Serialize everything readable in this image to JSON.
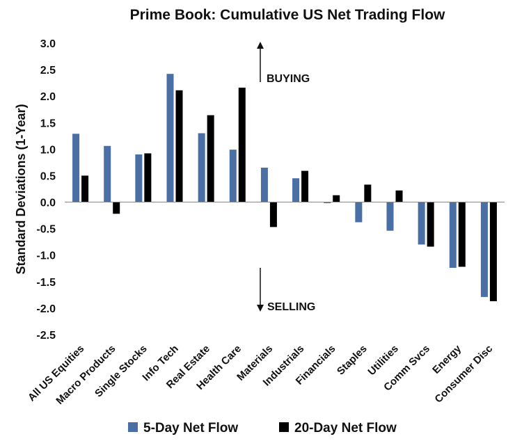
{
  "chart_data": {
    "type": "bar",
    "title": "Prime Book: Cumulative US Net Trading Flow",
    "xlabel": "",
    "ylabel": "Standard Deviations (1-Year)",
    "ylim": [
      -2.5,
      3.0
    ],
    "yticks": [
      "3.0",
      "2.5",
      "2.0",
      "1.5",
      "1.0",
      "0.5",
      "0.0",
      "-0.5",
      "-1.0",
      "-1.5",
      "-2.0",
      "-2.5"
    ],
    "grid": false,
    "legend_position": "bottom",
    "categories": [
      "All US Equities",
      "Macro Products",
      "Single Stocks",
      "Info Tech",
      "Real Estate",
      "Health Care",
      "Materials",
      "Industrials",
      "Financials",
      "Staples",
      "Utilities",
      "Comm Svcs",
      "Energy",
      "Consumer Disc"
    ],
    "series": [
      {
        "name": "5-Day Net Flow",
        "color": "#4a6fa5",
        "values": [
          1.29,
          1.06,
          0.9,
          2.42,
          1.3,
          0.99,
          0.65,
          0.45,
          -0.02,
          -0.38,
          -0.54,
          -0.8,
          -1.24,
          -1.79
        ]
      },
      {
        "name": "20-Day Net Flow",
        "color": "#000000",
        "values": [
          0.5,
          -0.22,
          0.92,
          2.11,
          1.64,
          2.16,
          -0.47,
          0.59,
          0.13,
          0.33,
          0.22,
          -0.84,
          -1.22,
          -1.87
        ]
      }
    ],
    "annotations": {
      "buying": "BUYING",
      "selling": "SELLING"
    }
  }
}
